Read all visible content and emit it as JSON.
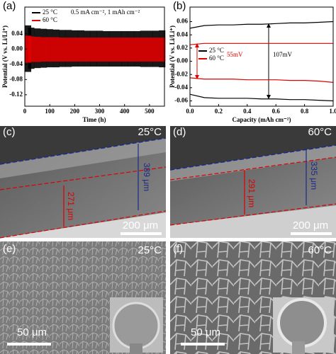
{
  "chart_data": [
    {
      "type": "band",
      "panel": "(a)",
      "annotation": "0.5 mA cm⁻², 1 mAh cm⁻²",
      "x_label": "Time (h)",
      "y_label": "Potential (V vs. Li/Li⁺)",
      "x": [
        0,
        25,
        50,
        75,
        100,
        125,
        150,
        175,
        200,
        225,
        250,
        275,
        300,
        325,
        350,
        375,
        400,
        425,
        450,
        475,
        500,
        525,
        550
      ],
      "series": [
        {
          "name": "25 °C",
          "color": "#000000",
          "values": [
            0.062,
            0.056,
            0.054,
            0.053,
            0.052,
            0.051,
            0.05,
            0.05,
            0.049,
            0.049,
            0.048,
            0.048,
            0.048,
            0.047,
            0.047,
            0.047,
            0.047,
            0.047,
            0.047,
            0.048,
            0.048,
            0.048,
            0.049
          ],
          "lower": [
            -0.06,
            -0.052,
            -0.05,
            -0.049,
            -0.048,
            -0.048,
            -0.047,
            -0.047,
            -0.046,
            -0.046,
            -0.046,
            -0.046,
            -0.046,
            -0.046,
            -0.046,
            -0.046,
            -0.046,
            -0.046,
            -0.046,
            -0.047,
            -0.047,
            -0.047,
            -0.048
          ]
        },
        {
          "name": "60 °C",
          "color": "#e00000",
          "values": [
            0.035,
            0.033,
            0.032,
            0.031,
            0.031,
            0.031,
            0.03,
            0.03,
            0.03,
            0.03,
            0.03,
            0.03,
            0.03,
            0.03,
            0.03,
            0.03,
            0.03,
            0.03,
            0.03,
            0.03,
            0.03,
            0.03,
            0.03
          ],
          "lower": [
            -0.036,
            -0.034,
            -0.034,
            -0.033,
            -0.033,
            -0.033,
            -0.033,
            -0.033,
            -0.033,
            -0.033,
            -0.033,
            -0.033,
            -0.033,
            -0.033,
            -0.033,
            -0.033,
            -0.033,
            -0.033,
            -0.033,
            -0.033,
            -0.033,
            -0.033,
            -0.033
          ]
        }
      ],
      "xlim": [
        0,
        560
      ],
      "xticks": [
        0,
        100,
        200,
        300,
        400,
        500
      ],
      "ylim": [
        -0.15,
        0.11
      ],
      "yticks": [
        -0.12,
        -0.08,
        -0.04,
        {
          "value": 0,
          "label": "0.00"
        },
        0.04
      ]
    },
    {
      "type": "line",
      "panel": "(b)",
      "annotations": [
        "55mV",
        "107mV"
      ],
      "x_label": "Capacity (mAh cm⁻²)",
      "y_label": "Potential (V vs. Li/Li⁺)",
      "x": [
        0,
        0.1,
        0.2,
        0.3,
        0.4,
        0.5,
        0.6,
        0.7,
        0.8,
        0.9,
        1
      ],
      "series": [
        {
          "name": "25 °C",
          "color": "#000000",
          "values": [
            0.05,
            0.054,
            0.055,
            0.055,
            0.056,
            0.056,
            0.057,
            0.058,
            0.058,
            0.059,
            0.06
          ],
          "lower": [
            -0.05,
            -0.055,
            -0.056,
            -0.056,
            -0.056,
            -0.057,
            -0.057,
            -0.058,
            -0.058,
            -0.059,
            -0.06
          ]
        },
        {
          "name": "60 °C",
          "color": "#e00000",
          "values": [
            0.025,
            0.027,
            0.027,
            0.027,
            0.027,
            0.027,
            0.027,
            0.027,
            0.027,
            0.027,
            0.027
          ],
          "lower": [
            -0.025,
            -0.027,
            -0.027,
            -0.027,
            -0.028,
            -0.028,
            -0.028,
            -0.029,
            -0.029,
            -0.03,
            -0.032
          ]
        }
      ],
      "xlim": [
        0,
        1
      ],
      "xticks": [
        {
          "value": 0,
          "label": "0.0"
        },
        0.2,
        0.4,
        0.6,
        0.8,
        {
          "value": 1,
          "label": "1.0"
        }
      ],
      "ylim": [
        -0.068,
        0.082
      ],
      "yticks": [
        -0.06,
        -0.04,
        -0.02,
        {
          "value": 0,
          "label": "0.00"
        },
        0.02,
        0.04,
        0.06
      ]
    }
  ],
  "panels": [
    {
      "label": "(c)",
      "temperature": "25°C",
      "thickness_outer": "389 μm",
      "thickness_inner": "271 μm",
      "scale_bar": "200 μm"
    },
    {
      "label": "(d)",
      "temperature": "60°C",
      "thickness_outer": "335 μm",
      "thickness_inner": "291 μm",
      "scale_bar": "200 μm"
    },
    {
      "label": "(e)",
      "temperature": "25°C",
      "scale_bar": "50 μm"
    },
    {
      "label": "(f)",
      "temperature": "60°C",
      "scale_bar": "50 μm"
    }
  ]
}
